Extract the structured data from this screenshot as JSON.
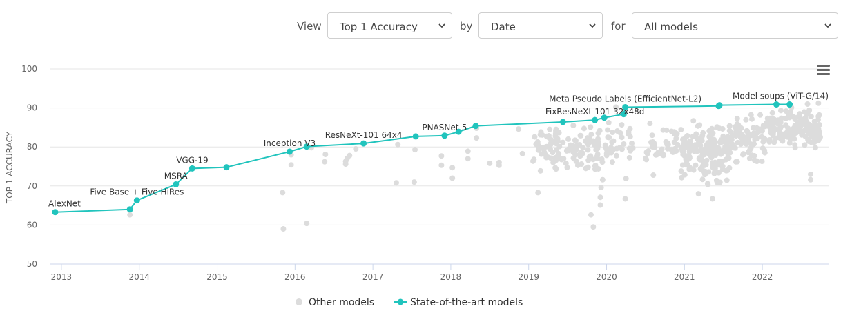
{
  "controls": {
    "view_label": "View",
    "view_value": "Top 1 Accuracy",
    "by_label": "by",
    "by_value": "Date",
    "for_label": "for",
    "for_value": "All models"
  },
  "colors": {
    "sota": "#21c4bd",
    "other": "#dcdcdc",
    "grid": "#e6e6e6",
    "axis": "#ccd6eb"
  },
  "chart_data": {
    "type": "scatter",
    "ylabel": "TOP 1 ACCURACY",
    "xlabel": "",
    "ylim": [
      50,
      100
    ],
    "yticks": [
      50,
      60,
      70,
      80,
      90,
      100
    ],
    "xlim": [
      2012.85,
      2022.85
    ],
    "xticks": [
      "2013",
      "2014",
      "2015",
      "2016",
      "2017",
      "2018",
      "2019",
      "2020",
      "2021",
      "2022"
    ],
    "legend": {
      "position": "bottom-center",
      "other": "Other models",
      "sota": "State-of-the-art models"
    },
    "sota_series": {
      "name": "State-of-the-art models",
      "points": [
        {
          "x": 2012.92,
          "y": 63.3,
          "label": "AlexNet"
        },
        {
          "x": 2013.88,
          "y": 64.0,
          "label": ""
        },
        {
          "x": 2013.97,
          "y": 66.3,
          "label": "Five Base + Five HiRes"
        },
        {
          "x": 2014.47,
          "y": 70.4,
          "label": "MSRA"
        },
        {
          "x": 2014.68,
          "y": 74.5,
          "label": "VGG-19"
        },
        {
          "x": 2015.12,
          "y": 74.8,
          "label": ""
        },
        {
          "x": 2015.93,
          "y": 78.8,
          "label": "Inception V3"
        },
        {
          "x": 2016.15,
          "y": 80.1,
          "label": ""
        },
        {
          "x": 2016.88,
          "y": 80.9,
          "label": "ResNeXt-101 64x4"
        },
        {
          "x": 2017.55,
          "y": 82.7,
          "label": ""
        },
        {
          "x": 2017.92,
          "y": 82.9,
          "label": "PNASNet-5"
        },
        {
          "x": 2018.1,
          "y": 83.9,
          "label": ""
        },
        {
          "x": 2018.32,
          "y": 85.4,
          "label": ""
        },
        {
          "x": 2019.44,
          "y": 86.4,
          "label": ""
        },
        {
          "x": 2019.85,
          "y": 86.9,
          "label": "FixResNeXt-101 32x48d"
        },
        {
          "x": 2019.97,
          "y": 87.5,
          "label": ""
        },
        {
          "x": 2020.22,
          "y": 88.4,
          "label": ""
        },
        {
          "x": 2020.24,
          "y": 90.2,
          "label": "Meta Pseudo Labels (EfficientNet-L2)"
        },
        {
          "x": 2021.44,
          "y": 90.5,
          "label": ""
        },
        {
          "x": 2021.45,
          "y": 90.7,
          "label": ""
        },
        {
          "x": 2022.18,
          "y": 90.9,
          "label": ""
        },
        {
          "x": 2022.35,
          "y": 90.9,
          "label": "Model soups (ViT-G/14)"
        }
      ]
    },
    "other_series": {
      "name": "Other models",
      "explicit_points": [
        [
          2013.88,
          62.6
        ],
        [
          2015.84,
          68.3
        ],
        [
          2015.85,
          59.0
        ],
        [
          2015.95,
          75.4
        ],
        [
          2015.95,
          78.0
        ],
        [
          2016.15,
          60.4
        ],
        [
          2016.21,
          79.8
        ],
        [
          2016.38,
          76.2
        ],
        [
          2016.39,
          78.1
        ],
        [
          2016.65,
          75.6
        ],
        [
          2016.65,
          76.3
        ],
        [
          2016.67,
          77.1
        ],
        [
          2016.7,
          77.8
        ],
        [
          2016.78,
          79.5
        ],
        [
          2017.3,
          70.8
        ],
        [
          2017.32,
          80.6
        ],
        [
          2017.53,
          71.0
        ],
        [
          2017.54,
          79.3
        ],
        [
          2017.88,
          75.3
        ],
        [
          2017.88,
          77.7
        ],
        [
          2018.02,
          72.0
        ],
        [
          2018.02,
          74.7
        ],
        [
          2018.22,
          77.0
        ],
        [
          2018.22,
          78.9
        ],
        [
          2018.33,
          82.3
        ],
        [
          2018.33,
          84.8
        ],
        [
          2018.5,
          75.8
        ],
        [
          2018.62,
          75.3
        ],
        [
          2018.62,
          76.0
        ],
        [
          2018.87,
          84.6
        ],
        [
          2018.92,
          78.3
        ],
        [
          2019.12,
          68.3
        ],
        [
          2019.83,
          59.5
        ],
        [
          2019.8,
          62.6
        ],
        [
          2019.92,
          65.1
        ],
        [
          2019.92,
          67.1
        ],
        [
          2019.93,
          69.6
        ],
        [
          2019.95,
          71.6
        ],
        [
          2020.24,
          66.7
        ],
        [
          2020.25,
          71.9
        ],
        [
          2021.42,
          70.9
        ],
        [
          2022.3,
          87.3
        ],
        [
          2022.62,
          71.6
        ],
        [
          2022.62,
          73.0
        ],
        [
          2022.58,
          91.0
        ],
        [
          2022.72,
          91.2
        ],
        [
          2020.12,
          90.2
        ],
        [
          2020.77,
          84.3
        ],
        [
          2021.18,
          68.0
        ],
        [
          2021.36,
          66.7
        ]
      ],
      "clusters": [
        {
          "x_range": [
            2019.05,
            2020.1
          ],
          "y_range": [
            72,
            87
          ],
          "count": 150
        },
        {
          "x_range": [
            2020.5,
            2020.92
          ],
          "y_range": [
            71,
            89
          ],
          "count": 40
        },
        {
          "x_range": [
            2020.95,
            2021.6
          ],
          "y_range": [
            69,
            89
          ],
          "count": 190
        },
        {
          "x_range": [
            2021.6,
            2022.05
          ],
          "y_range": [
            74,
            90
          ],
          "count": 80
        },
        {
          "x_range": [
            2022.05,
            2022.75
          ],
          "y_range": [
            78,
            91
          ],
          "count": 160
        },
        {
          "x_range": [
            2020.0,
            2020.35
          ],
          "y_range": [
            74,
            88
          ],
          "count": 25
        }
      ]
    }
  }
}
